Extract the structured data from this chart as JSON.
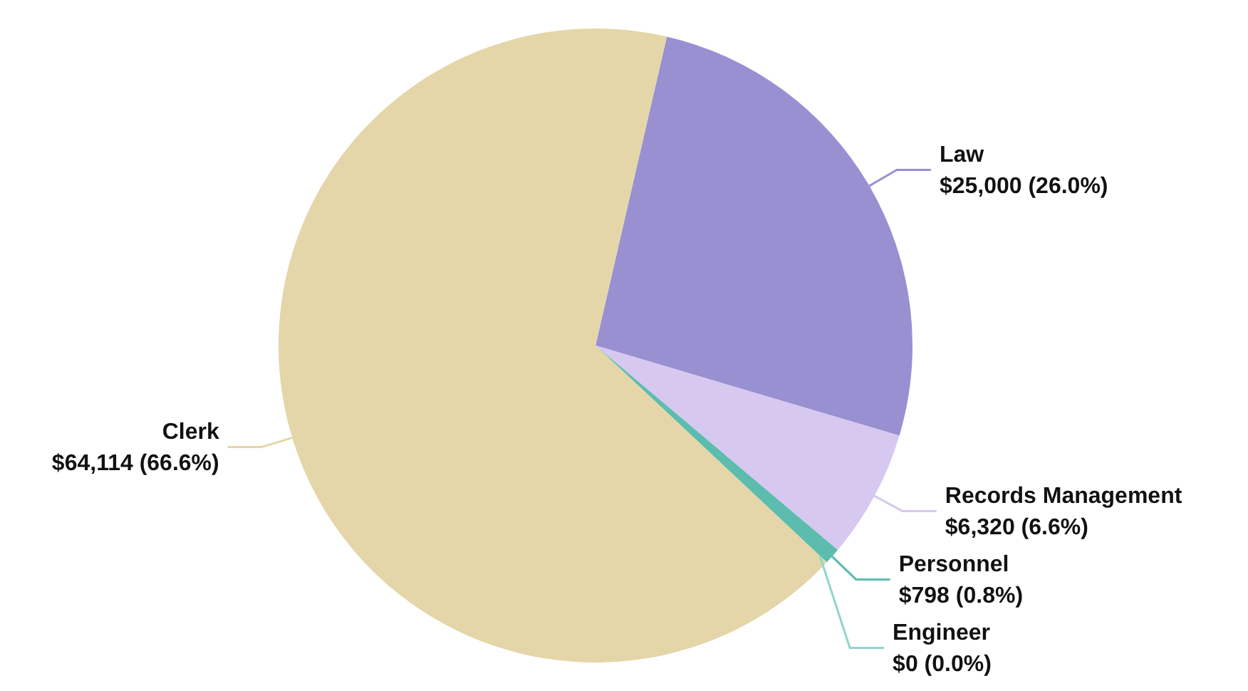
{
  "chart_data": {
    "type": "pie",
    "categories": [
      "Law",
      "Records Management",
      "Personnel",
      "Engineer",
      "Clerk"
    ],
    "values": [
      25000,
      6320,
      798,
      0,
      64114
    ],
    "colors": [
      "#9990d2",
      "#d6c8ef",
      "#5cbcae",
      "#8fd6cc",
      "#e4d6a8"
    ],
    "value_labels": [
      "$25,000 (26.0%)",
      "$6,320 (6.6%)",
      "$798 (0.8%)",
      "$0 (0.0%)",
      "$64,114 (66.6%)"
    ],
    "legend": false
  }
}
